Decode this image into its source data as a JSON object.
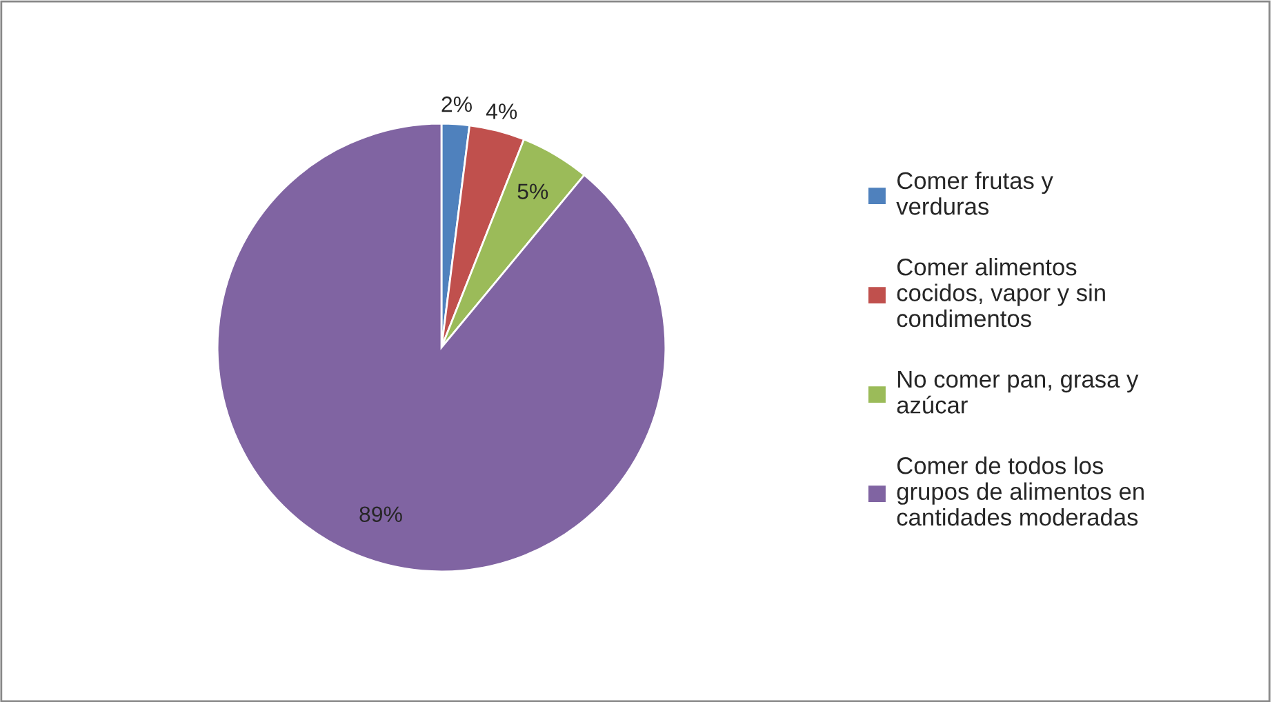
{
  "chart_data": {
    "type": "pie",
    "categories": [
      "Comer frutas y verduras",
      "Comer alimentos cocidos, vapor y sin condimentos",
      "No comer pan, grasa y azúcar",
      "Comer de todos los grupos de alimentos en cantidades moderadas"
    ],
    "values": [
      2,
      4,
      5,
      89
    ],
    "colors": [
      "#4f81bd",
      "#c0504d",
      "#9bbb59",
      "#8064a2"
    ],
    "value_labels": [
      "2%",
      "4%",
      "5%",
      "89%"
    ],
    "legend": "right"
  }
}
